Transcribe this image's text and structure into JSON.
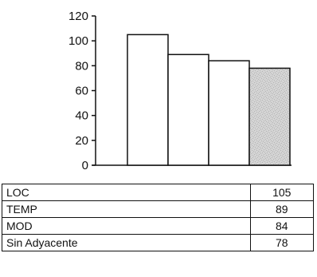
{
  "chart_data": {
    "type": "bar",
    "categories": [
      "LOC",
      "TEMP",
      "MOD",
      "Sin Adyacente"
    ],
    "values": [
      105,
      89,
      84,
      78
    ],
    "ylim": [
      0,
      120
    ],
    "yticks": [
      0,
      20,
      40,
      60,
      80,
      100,
      120
    ],
    "grid": false,
    "bar_fills": [
      "#ffffff",
      "#ffffff",
      "#ffffff",
      "#d4d4d4"
    ],
    "data_table": {
      "rows": [
        {
          "label": "LOC",
          "value": "105"
        },
        {
          "label": "TEMP",
          "value": "89"
        },
        {
          "label": "MOD",
          "value": "84"
        },
        {
          "label": "Sin Adyacente",
          "value": "78"
        }
      ]
    }
  }
}
